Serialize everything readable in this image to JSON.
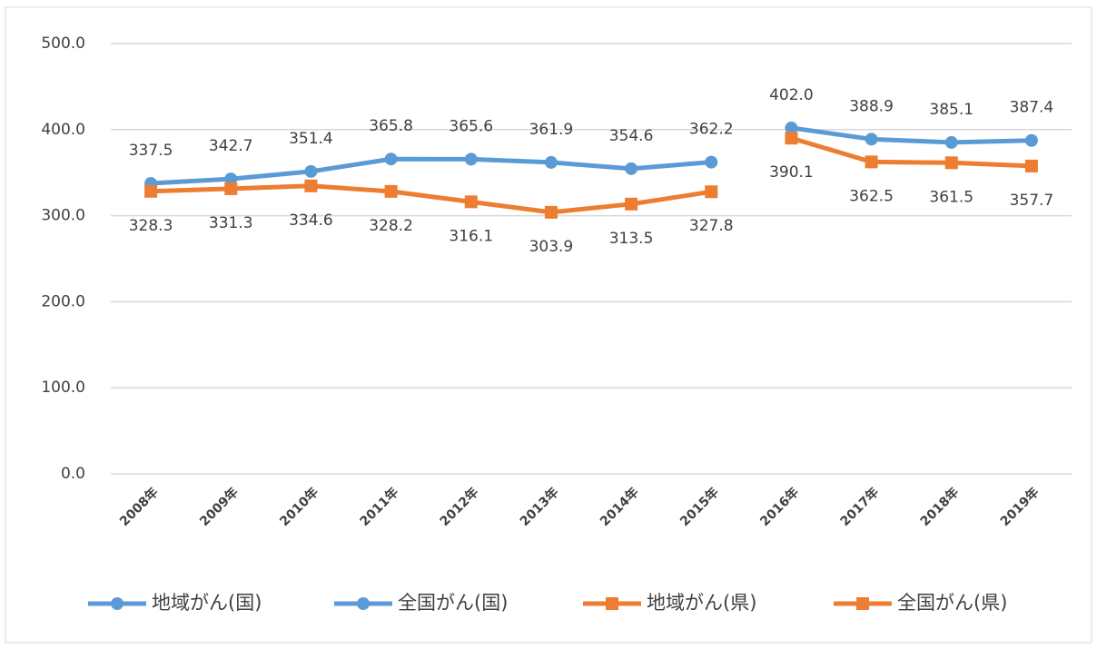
{
  "chart_data": {
    "type": "line",
    "categories": [
      "2008年",
      "2009年",
      "2010年",
      "2011年",
      "2012年",
      "2013年",
      "2014年",
      "2015年",
      "2016年",
      "2017年",
      "2018年",
      "2019年"
    ],
    "series": [
      {
        "name": "地域がん(国)",
        "color": "#5b9bd5",
        "marker": "circle",
        "label_side": "above",
        "values": [
          337.5,
          342.7,
          351.4,
          365.8,
          365.6,
          361.9,
          354.6,
          362.2,
          null,
          null,
          null,
          null
        ],
        "value_labels": [
          "337.5",
          "342.7",
          "351.4",
          "365.8",
          "365.6",
          "361.9",
          "354.6",
          "362.2",
          null,
          null,
          null,
          null
        ]
      },
      {
        "name": "全国がん(国)",
        "color": "#5b9bd5",
        "marker": "circle",
        "label_side": "above",
        "values": [
          null,
          null,
          null,
          null,
          null,
          null,
          null,
          null,
          402.0,
          388.9,
          385.1,
          387.4
        ],
        "value_labels": [
          null,
          null,
          null,
          null,
          null,
          null,
          null,
          null,
          "402.0",
          "388.9",
          "385.1",
          "387.4"
        ]
      },
      {
        "name": "地域がん(県)",
        "color": "#ed7d31",
        "marker": "square",
        "label_side": "below",
        "values": [
          328.3,
          331.3,
          334.6,
          328.2,
          316.1,
          303.9,
          313.5,
          327.8,
          null,
          null,
          null,
          null
        ],
        "value_labels": [
          "328.3",
          "331.3",
          "334.6",
          "328.2",
          "316.1",
          "303.9",
          "313.5",
          "327.8",
          null,
          null,
          null,
          null
        ]
      },
      {
        "name": "全国がん(県)",
        "color": "#ed7d31",
        "marker": "square",
        "label_side": "below",
        "values": [
          null,
          null,
          null,
          null,
          null,
          null,
          null,
          null,
          390.1,
          362.5,
          361.5,
          357.7
        ],
        "value_labels": [
          null,
          null,
          null,
          null,
          null,
          null,
          null,
          null,
          "390.1",
          "362.5",
          "361.5",
          "357.7"
        ]
      }
    ],
    "ylim": [
      0,
      500
    ],
    "yticks": [
      {
        "value": 0,
        "label": "0.0"
      },
      {
        "value": 100,
        "label": "100.0"
      },
      {
        "value": 200,
        "label": "200.0"
      },
      {
        "value": 300,
        "label": "300.0"
      },
      {
        "value": 400,
        "label": "400.0"
      },
      {
        "value": 500,
        "label": "500.0"
      }
    ],
    "grid": true,
    "legend": "bottom"
  }
}
